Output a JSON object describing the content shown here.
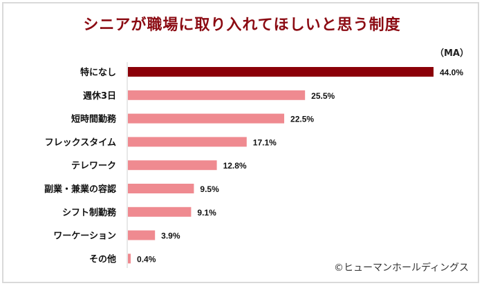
{
  "chart_data": {
    "type": "bar",
    "orientation": "horizontal",
    "title": "シニアが職場に取り入れてほしいと思う制度",
    "unit_note": "（MA）",
    "credit": "©ヒューマンホールディングス",
    "categories": [
      "特になし",
      "週休3日",
      "短時間勤務",
      "フレックスタイム",
      "テレワーク",
      "副業・兼業の容認",
      "シフト制勤務",
      "ワーケーション",
      "その他"
    ],
    "values": [
      44.0,
      25.5,
      22.5,
      17.1,
      12.8,
      9.5,
      9.1,
      3.9,
      0.4
    ],
    "value_labels": [
      "44.0%",
      "25.5%",
      "22.5%",
      "17.1%",
      "12.8%",
      "9.5%",
      "9.1%",
      "3.9%",
      "0.4%"
    ],
    "xlim": [
      0,
      44
    ],
    "grid": false,
    "colors": {
      "highlight": "#8b0008",
      "default": "#ef8a90"
    }
  }
}
